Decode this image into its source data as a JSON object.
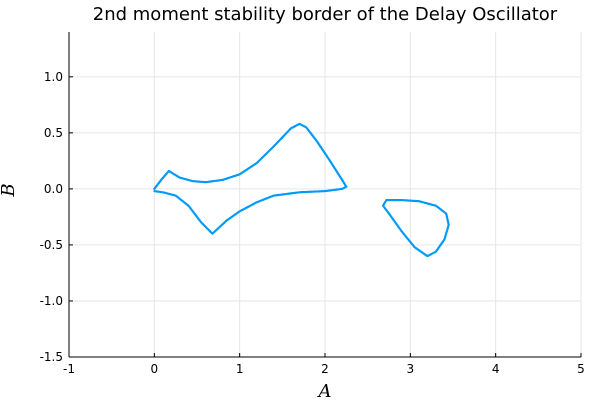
{
  "chart_data": {
    "type": "scatter",
    "title": "2nd moment stability border of the Delay Oscillator",
    "xlabel": "A",
    "ylabel": "B",
    "xlim": [
      -1,
      5
    ],
    "ylim": [
      -1.5,
      1.4
    ],
    "xticks": [
      -1,
      0,
      1,
      2,
      3,
      4,
      5
    ],
    "xtick_labels": [
      "-1",
      "0",
      "1",
      "2",
      "3",
      "4",
      "5"
    ],
    "yticks": [
      -1.5,
      -1.0,
      -0.5,
      0.0,
      0.5,
      1.0
    ],
    "ytick_labels": [
      "-1.5",
      "-1.0",
      "-0.5",
      "0.0",
      "0.5",
      "1.0"
    ],
    "grid": true,
    "legend": "none",
    "marker": "small dots",
    "color": "#009AF9",
    "series": [
      {
        "values": [
          [
            0.0,
            0.0
          ],
          [
            0.08,
            0.08
          ],
          [
            0.17,
            0.16
          ],
          [
            0.3,
            0.1
          ],
          [
            0.45,
            0.07
          ],
          [
            0.6,
            0.06
          ],
          [
            0.8,
            0.08
          ],
          [
            1.0,
            0.13
          ],
          [
            1.2,
            0.23
          ],
          [
            1.4,
            0.38
          ],
          [
            1.6,
            0.54
          ],
          [
            1.7,
            0.58
          ],
          [
            1.78,
            0.55
          ],
          [
            1.9,
            0.43
          ],
          [
            2.05,
            0.26
          ],
          [
            2.2,
            0.08
          ],
          [
            2.25,
            0.02
          ],
          [
            2.2,
            0.0
          ],
          [
            2.0,
            -0.02
          ],
          [
            1.7,
            -0.03
          ],
          [
            1.4,
            -0.06
          ],
          [
            1.2,
            -0.12
          ],
          [
            1.0,
            -0.2
          ],
          [
            0.85,
            -0.28
          ],
          [
            0.68,
            -0.4
          ],
          [
            0.55,
            -0.3
          ],
          [
            0.4,
            -0.15
          ],
          [
            0.25,
            -0.06
          ],
          [
            0.1,
            -0.03
          ],
          [
            0.0,
            -0.02
          ]
        ]
      },
      {
        "values": [
          [
            2.72,
            -0.1
          ],
          [
            2.9,
            -0.1
          ],
          [
            3.1,
            -0.11
          ],
          [
            3.3,
            -0.15
          ],
          [
            3.42,
            -0.22
          ],
          [
            3.45,
            -0.32
          ],
          [
            3.4,
            -0.45
          ],
          [
            3.3,
            -0.56
          ],
          [
            3.2,
            -0.6
          ],
          [
            3.05,
            -0.52
          ],
          [
            2.9,
            -0.38
          ],
          [
            2.75,
            -0.22
          ],
          [
            2.68,
            -0.15
          ],
          [
            2.72,
            -0.1
          ]
        ]
      }
    ]
  }
}
